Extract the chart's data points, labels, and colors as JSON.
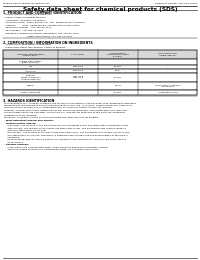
{
  "background_color": "#ffffff",
  "header_left": "Product Name: Lithium Ion Battery Cell",
  "header_right_line1": "Reference Number: MN-SDS-00010",
  "header_right_line2": "Established / Revision: Dec.1 2016",
  "title": "Safety data sheet for chemical products (SDS)",
  "section1_title": "1. PRODUCT AND COMPANY IDENTIFICATION",
  "section1_items": [
    "· Product name: Lithium Ion Battery Cell",
    "· Product code: Cylindrical-type cell",
    "   (ICP86500, ICP18650, ICP18650A)",
    "· Company name:  Sanyo Electric Co., Ltd.  Mobile Energy Company",
    "· Address:         2031  Kamikashiwa, Sumoto-City, Hyogo, Japan",
    "· Telephone number:  +81-799-26-4111",
    "· Fax number:  +81-799-26-4120",
    "· Emergency telephone number (Weekdays) +81-799-26-2062",
    "                               (Night and holiday) +81-799-26-4101"
  ],
  "section2_title": "2. COMPOSITION / INFORMATION ON INGREDIENTS",
  "section2_intro": "· Substance or preparation: Preparation",
  "section2_sub": "· Information about the chemical nature of product:",
  "table_col_headers": [
    "Common chemical name /\nGeneric name",
    "CAS number",
    "Concentration /\nConcentration range\n(0-100%)",
    "Classification and\nhazard labeling"
  ],
  "table_rows": [
    [
      "Lithium metal oxides\n(LiMn+Co+NiO2)",
      "-",
      "-",
      "-"
    ],
    [
      "Iron",
      "7439-89-6",
      "10-20%",
      "-"
    ],
    [
      "Aluminium",
      "7429-90-5",
      "2-5%",
      "-"
    ],
    [
      "Graphite\n(Bake in graphite /\nArtificial graphite)",
      "7782-42-5\n7782-42-5",
      "10-20%",
      "-"
    ],
    [
      "Copper",
      "-",
      "5-10%",
      "Sensitization of the skin\ngroup N1,2"
    ],
    [
      "Organic electrolyte",
      "-",
      "10-20%",
      "Inflammable liquid"
    ]
  ],
  "section3_title": "3. HAZARDS IDENTIFICATION",
  "section3_lines": [
    "For this battery cell, chemical materials are stored in a hermetically sealed metal case, designed to withstand",
    "temperatures and pressures encountered during its normal use. As a result, during normal use, there is no",
    "physical danger of explosion or evaporation and no chance of battery electrolyte leakage.",
    "However, if exposed to a fire, added mechanical shocks, decomposed, unintended abnormal miss-use,",
    "the gas inside cannot be operated. The battery cell case will be breached at fire-particles, hazardous",
    "materials may be released.",
    "Moreover, if heated strongly by the surrounding fire, toxic gas may be emitted."
  ],
  "section3_bullet1": "· Most important hazard and effects:",
  "section3_health_title": "Human health effects:",
  "section3_health_items": [
    "  Inhalation: The release of the electrolyte has an anesthesia action and stimulates a respiratory tract.",
    "  Skin contact: The release of the electrolyte stimulates a skin. The electrolyte skin contact causes a",
    "  sore and stimulation on the skin.",
    "  Eye contact: The release of the electrolyte stimulates eyes. The electrolyte eye contact causes a sore",
    "  and stimulation on the eye. Especially, a substance that causes a strong inflammation of the eyes is",
    "  contained.",
    "  Environmental effects: Since a battery cell remains in the environment, do not throw out it into the",
    "  environment."
  ],
  "section3_specific_title": "· Specific hazards:",
  "section3_specific_items": [
    "  If the electrolyte contacts with water, it will generate detrimental hydrogen fluoride.",
    "  Since the leaked electrolyte is inflammable liquid, do not bring close to fire."
  ],
  "line_color": "#000000",
  "text_color": "#000000",
  "header_gray": "#cccccc"
}
